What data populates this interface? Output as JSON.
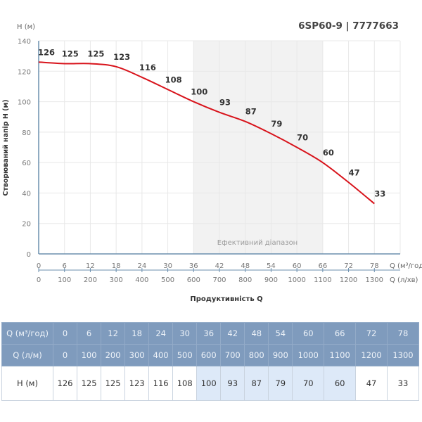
{
  "chart_data": {
    "type": "line",
    "title": "6SP60-9 | 7777663",
    "ylabel": "Створюваний напір H (м)",
    "y_unit_label": "H (м)",
    "xlabel": "Продуктивність Q",
    "x_unit_label": "Q (м³/год)",
    "x2_unit_label": "Q (л/хв)",
    "ylim": [
      0,
      140
    ],
    "yticks": [
      0,
      20,
      40,
      60,
      80,
      100,
      120,
      140
    ],
    "xlim": [
      0,
      84
    ],
    "x": [
      0,
      6,
      12,
      18,
      24,
      30,
      36,
      42,
      48,
      54,
      60,
      66,
      72,
      78
    ],
    "x2": [
      0,
      100,
      200,
      300,
      400,
      500,
      600,
      700,
      800,
      900,
      1000,
      1100,
      1200,
      1300
    ],
    "values": [
      126,
      125,
      125,
      123,
      116,
      108,
      100,
      93,
      87,
      79,
      70,
      60,
      47,
      33
    ],
    "efficient_range": [
      36,
      66
    ],
    "efficient_range_label": "Ефективний діапазон",
    "line_color": "#d8131b",
    "grid": true
  },
  "table": {
    "row_labels": [
      "Q (м³/год)",
      "Q (л/м)",
      "H (м)"
    ],
    "q_m3h": [
      "0",
      "6",
      "12",
      "18",
      "24",
      "30",
      "36",
      "42",
      "48",
      "54",
      "60",
      "66",
      "72",
      "78"
    ],
    "q_lm": [
      "0",
      "100",
      "200",
      "300",
      "400",
      "500",
      "600",
      "700",
      "800",
      "900",
      "1000",
      "1100",
      "1200",
      "1300"
    ],
    "h": [
      "126",
      "125",
      "125",
      "123",
      "116",
      "108",
      "100",
      "93",
      "87",
      "79",
      "70",
      "60",
      "47",
      "33"
    ],
    "header_color": "#7f9bbd",
    "highlight_color": "#dde9f8"
  }
}
